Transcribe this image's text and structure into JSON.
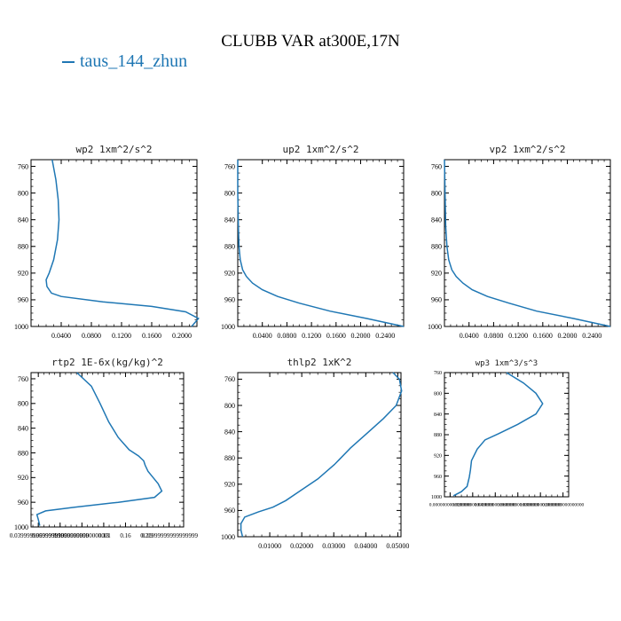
{
  "title": "CLUBB VAR at300E,17N",
  "legend": {
    "label": "taus_144_zhun",
    "color": "#1f77b4"
  },
  "chart_data": [
    {
      "type": "line",
      "title": "wp2  1xm^2/s^2",
      "y_ticks": [
        "760",
        "800",
        "840",
        "880",
        "920",
        "960",
        "1000"
      ],
      "x_ticks": [
        "0.0400",
        "0.0800",
        "0.1200",
        "0.1600",
        "0.2000"
      ],
      "x_tick_values": [
        0.04,
        0.08,
        0.12,
        0.16,
        0.2
      ],
      "xlim": [
        0.0,
        0.22
      ],
      "ylim": [
        1000,
        750
      ],
      "series": [
        {
          "x": [
            0.028,
            0.033,
            0.036,
            0.037,
            0.035,
            0.03,
            0.024,
            0.02,
            0.021,
            0.027,
            0.04,
            0.095,
            0.16,
            0.205,
            0.222,
            0.213
          ],
          "y": [
            750,
            780,
            810,
            840,
            870,
            900,
            920,
            930,
            940,
            950,
            955,
            963,
            970,
            978,
            988,
            1000
          ]
        }
      ]
    },
    {
      "type": "line",
      "title": "up2  1xm^2/s^2",
      "y_ticks": [
        "760",
        "800",
        "840",
        "880",
        "920",
        "960",
        "1000"
      ],
      "x_ticks": [
        "0.0400",
        "0.0800",
        "0.1200",
        "0.1600",
        "0.2000",
        "0.2400"
      ],
      "x_tick_values": [
        0.04,
        0.08,
        0.12,
        0.16,
        0.2,
        0.24
      ],
      "xlim": [
        0.0,
        0.27
      ],
      "ylim": [
        1000,
        750
      ],
      "series": [
        {
          "x": [
            0.0,
            0.0,
            0.001,
            0.002,
            0.004,
            0.008,
            0.014,
            0.024,
            0.04,
            0.065,
            0.1,
            0.15,
            0.21,
            0.27
          ],
          "y": [
            750,
            800,
            850,
            880,
            900,
            915,
            925,
            935,
            945,
            955,
            965,
            977,
            988,
            1000
          ]
        }
      ]
    },
    {
      "type": "line",
      "title": "vp2  1xm^2/s^2",
      "y_ticks": [
        "760",
        "800",
        "840",
        "880",
        "920",
        "960",
        "1000"
      ],
      "x_ticks": [
        "0.0400",
        "0.0800",
        "0.1200",
        "0.1600",
        "0.2000",
        "0.2400"
      ],
      "x_tick_values": [
        0.04,
        0.08,
        0.12,
        0.16,
        0.2,
        0.24
      ],
      "xlim": [
        0.0,
        0.27
      ],
      "ylim": [
        1000,
        750
      ],
      "series": [
        {
          "x": [
            0.0,
            0.001,
            0.002,
            0.004,
            0.007,
            0.012,
            0.019,
            0.03,
            0.045,
            0.07,
            0.105,
            0.15,
            0.21,
            0.27
          ],
          "y": [
            750,
            800,
            850,
            880,
            900,
            915,
            925,
            935,
            945,
            955,
            965,
            977,
            988,
            1000
          ]
        }
      ]
    },
    {
      "type": "line",
      "title": "rtp2  1E-6x(kg/kg)^2",
      "y_ticks": [
        "760",
        "800",
        "840",
        "880",
        "920",
        "960",
        "1000"
      ],
      "x_ticks": [
        "0.03999999999999999",
        "0.06999999999999999",
        "0.10000000000000001",
        "0.13",
        "0.16",
        "0.19",
        "0.21999999999999999"
      ],
      "x_tick_values": [
        0.04,
        0.07,
        0.1,
        0.13,
        0.16,
        0.19,
        0.22
      ],
      "xlim": [
        0.03,
        0.24
      ],
      "ylim": [
        1000,
        750
      ],
      "series": [
        {
          "x": [
            0.093,
            0.113,
            0.125,
            0.137,
            0.15,
            0.165,
            0.178,
            0.185,
            0.187,
            0.191,
            0.198,
            0.205,
            0.21,
            0.2,
            0.15,
            0.09,
            0.05,
            0.038,
            0.04,
            0.042
          ],
          "y": [
            750,
            772,
            800,
            830,
            855,
            875,
            885,
            893,
            900,
            910,
            920,
            930,
            942,
            952,
            960,
            968,
            974,
            980,
            988,
            998
          ]
        }
      ]
    },
    {
      "type": "line",
      "title": "thlp2  1xK^2",
      "y_ticks": [
        "760",
        "800",
        "840",
        "880",
        "920",
        "960",
        "1000"
      ],
      "x_ticks": [
        "0.01000",
        "0.02000",
        "0.03000",
        "0.04000",
        "0.05000"
      ],
      "x_tick_values": [
        0.01,
        0.02,
        0.03,
        0.04,
        0.05
      ],
      "xlim": [
        0.0,
        0.051
      ],
      "ylim": [
        1000,
        750
      ],
      "series": [
        {
          "x": [
            0.0485,
            0.0505,
            0.0512,
            0.0495,
            0.0455,
            0.0405,
            0.0352,
            0.0302,
            0.025,
            0.0195,
            0.015,
            0.011,
            0.0065,
            0.0022,
            0.001,
            0.001,
            0.0015
          ],
          "y": [
            750,
            760,
            778,
            800,
            820,
            842,
            865,
            890,
            912,
            930,
            945,
            955,
            962,
            970,
            980,
            990,
            1000
          ]
        }
      ]
    },
    {
      "type": "line",
      "title": "wp3  1xm^3/s^3",
      "y_ticks": [
        "760",
        "800",
        "840",
        "880",
        "920",
        "960",
        "1000"
      ],
      "x_ticks": [
        "0.0000000000000000",
        "0.0200000000000000",
        "0.0400000000000000",
        "0.0600000000000000",
        "0.0800000000000000",
        "0.1000000000000000"
      ],
      "x_tick_values": [
        0.0,
        0.02,
        0.04,
        0.06,
        0.08,
        0.1
      ],
      "xlim": [
        -0.005,
        0.105
      ],
      "ylim": [
        1000,
        760
      ],
      "series": [
        {
          "x": [
            0.05,
            0.065,
            0.076,
            0.082,
            0.076,
            0.06,
            0.043,
            0.031,
            0.024,
            0.019,
            0.018,
            0.017,
            0.015,
            0.01,
            0.003
          ],
          "y": [
            760,
            780,
            800,
            820,
            840,
            860,
            878,
            890,
            908,
            930,
            948,
            962,
            980,
            990,
            998
          ]
        }
      ]
    }
  ]
}
